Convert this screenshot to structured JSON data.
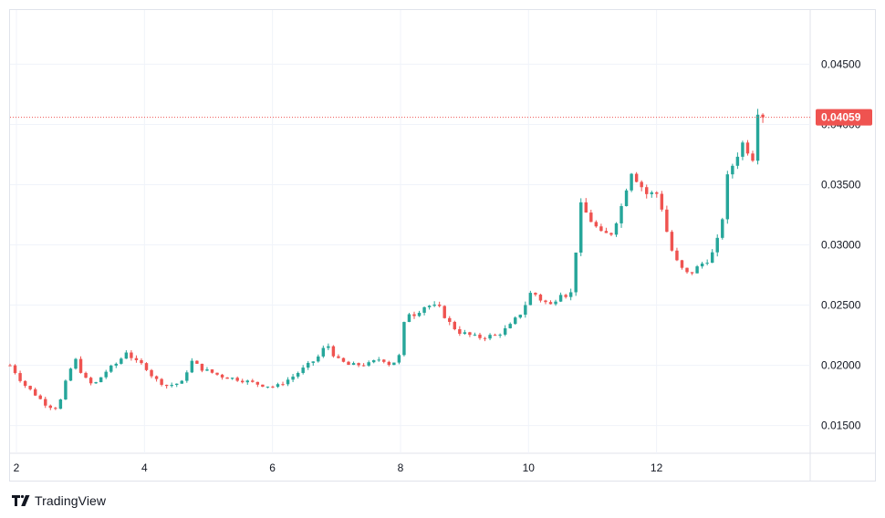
{
  "branding": {
    "name": "TradingView",
    "logo_icon": "tradingview-logo-icon"
  },
  "colors": {
    "up": "#26a69a",
    "down": "#ef5350",
    "grid": "#f0f3fa",
    "text": "#131722",
    "last_price_line": "#ef5350"
  },
  "chart_data": {
    "type": "candlestick",
    "x_tick_labels": [
      "2",
      "4",
      "6",
      "8",
      "10",
      "12"
    ],
    "x_tick_values": [
      2,
      4,
      6,
      8,
      10,
      12
    ],
    "y_tick_labels": [
      "0.01500",
      "0.02000",
      "0.02500",
      "0.03000",
      "0.03500",
      "0.04000",
      "0.04500"
    ],
    "y_tick_values": [
      0.015,
      0.02,
      0.025,
      0.03,
      0.035,
      0.04,
      0.045
    ],
    "xlim": [
      1.9,
      14.4
    ],
    "ylim": [
      0.0127,
      0.0495
    ],
    "last_price": {
      "label": "0.04059",
      "value": 0.04059
    },
    "grid": true,
    "price_axis": "right",
    "anchors": [
      [
        1.9,
        0.02
      ],
      [
        2.0,
        0.0193
      ],
      [
        2.1,
        0.0185
      ],
      [
        2.25,
        0.0178
      ],
      [
        2.45,
        0.0168
      ],
      [
        2.6,
        0.0164
      ],
      [
        2.7,
        0.0172
      ],
      [
        2.8,
        0.0192
      ],
      [
        2.92,
        0.0205
      ],
      [
        3.05,
        0.019
      ],
      [
        3.2,
        0.0183
      ],
      [
        3.4,
        0.0195
      ],
      [
        3.6,
        0.0203
      ],
      [
        3.72,
        0.0212
      ],
      [
        3.85,
        0.0203
      ],
      [
        4.0,
        0.02
      ],
      [
        4.15,
        0.0189
      ],
      [
        4.35,
        0.0183
      ],
      [
        4.6,
        0.0186
      ],
      [
        4.72,
        0.0204
      ],
      [
        4.9,
        0.0197
      ],
      [
        5.2,
        0.0191
      ],
      [
        5.5,
        0.0188
      ],
      [
        5.8,
        0.0184
      ],
      [
        6.05,
        0.0182
      ],
      [
        6.3,
        0.019
      ],
      [
        6.5,
        0.0198
      ],
      [
        6.7,
        0.0206
      ],
      [
        6.85,
        0.0218
      ],
      [
        7.0,
        0.0205
      ],
      [
        7.2,
        0.02
      ],
      [
        7.5,
        0.0201
      ],
      [
        7.7,
        0.0206
      ],
      [
        7.85,
        0.02
      ],
      [
        8.0,
        0.0209
      ],
      [
        8.08,
        0.0245
      ],
      [
        8.2,
        0.0242
      ],
      [
        8.4,
        0.025
      ],
      [
        8.6,
        0.0248
      ],
      [
        8.75,
        0.0236
      ],
      [
        8.9,
        0.0228
      ],
      [
        9.2,
        0.0223
      ],
      [
        9.5,
        0.0225
      ],
      [
        9.7,
        0.0232
      ],
      [
        9.9,
        0.0245
      ],
      [
        10.05,
        0.0262
      ],
      [
        10.2,
        0.0254
      ],
      [
        10.35,
        0.025
      ],
      [
        10.52,
        0.0262
      ],
      [
        10.65,
        0.0255
      ],
      [
        10.75,
        0.03
      ],
      [
        10.82,
        0.0333
      ],
      [
        10.95,
        0.0322
      ],
      [
        11.15,
        0.0308
      ],
      [
        11.3,
        0.031
      ],
      [
        11.45,
        0.0332
      ],
      [
        11.6,
        0.0362
      ],
      [
        11.72,
        0.0352
      ],
      [
        11.85,
        0.0342
      ],
      [
        12.0,
        0.0343
      ],
      [
        12.1,
        0.0328
      ],
      [
        12.2,
        0.03
      ],
      [
        12.35,
        0.0282
      ],
      [
        12.5,
        0.0275
      ],
      [
        12.7,
        0.0284
      ],
      [
        12.85,
        0.029
      ],
      [
        13.0,
        0.031
      ],
      [
        13.1,
        0.0355
      ],
      [
        13.2,
        0.0368
      ],
      [
        13.35,
        0.0385
      ],
      [
        13.5,
        0.0372
      ],
      [
        13.56,
        0.039
      ],
      [
        13.62,
        0.0452
      ],
      [
        13.66,
        0.04059
      ]
    ],
    "candle_count": 150
  }
}
